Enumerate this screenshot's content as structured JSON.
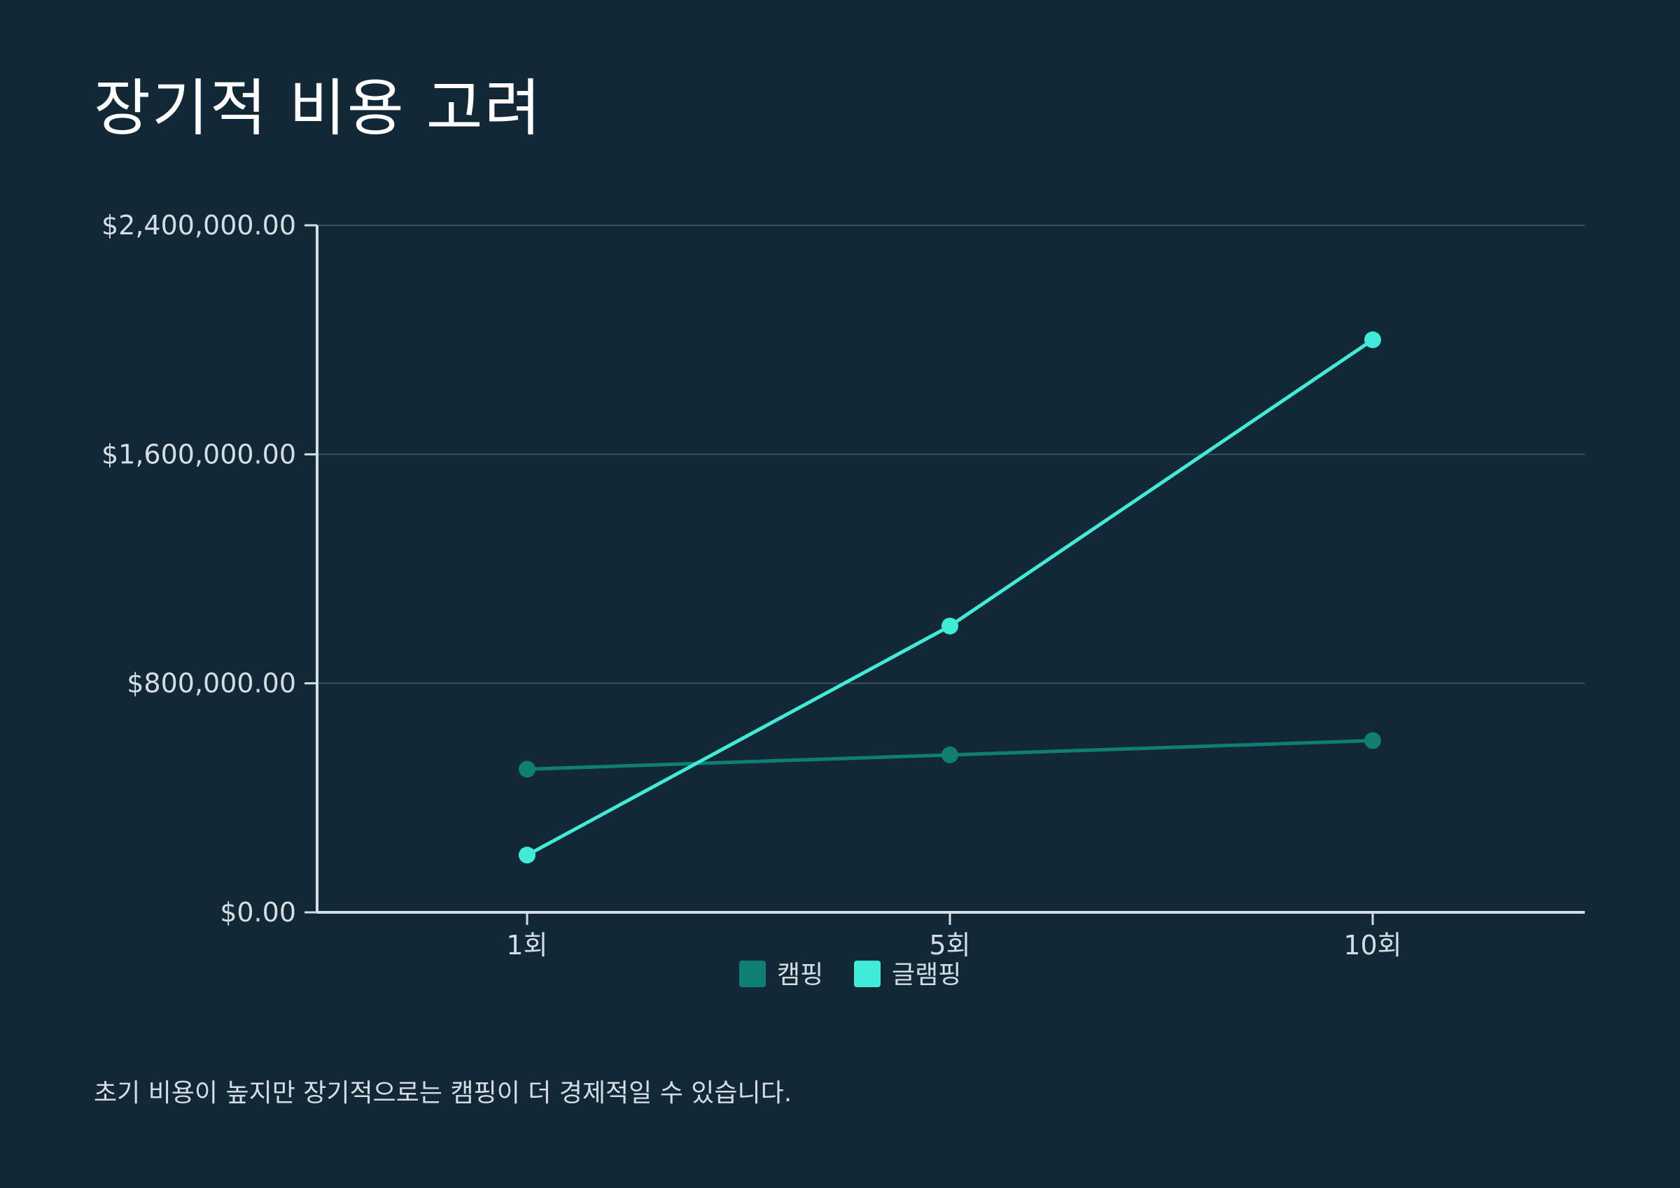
{
  "title": "장기적 비용 고려",
  "footnote": "초기 비용이 높지만 장기적으로는 캠핑이 더 경제적일 수 있습니다.",
  "colors": {
    "background": "#122836",
    "grid": "#3a5160",
    "axis": "#d4dde3",
    "text": "#d4dde3"
  },
  "chart_data": {
    "type": "line",
    "categories": [
      "1회",
      "5회",
      "10회"
    ],
    "series": [
      {
        "name": "캠핑",
        "color": "#0f7f72",
        "values": [
          500000,
          550000,
          600000
        ]
      },
      {
        "name": "글램핑",
        "color": "#40ecd8",
        "values": [
          200000,
          1000000,
          2000000
        ]
      }
    ],
    "ylim": [
      0,
      2400000
    ],
    "yticks": [
      0,
      800000,
      1600000,
      2400000
    ],
    "ytick_labels": [
      "$0.00",
      "$800,000.00",
      "$1,600,000.00",
      "$2,400,000.00"
    ],
    "grid": true,
    "legend_position": "bottom-center",
    "xlabel": "",
    "ylabel": ""
  }
}
